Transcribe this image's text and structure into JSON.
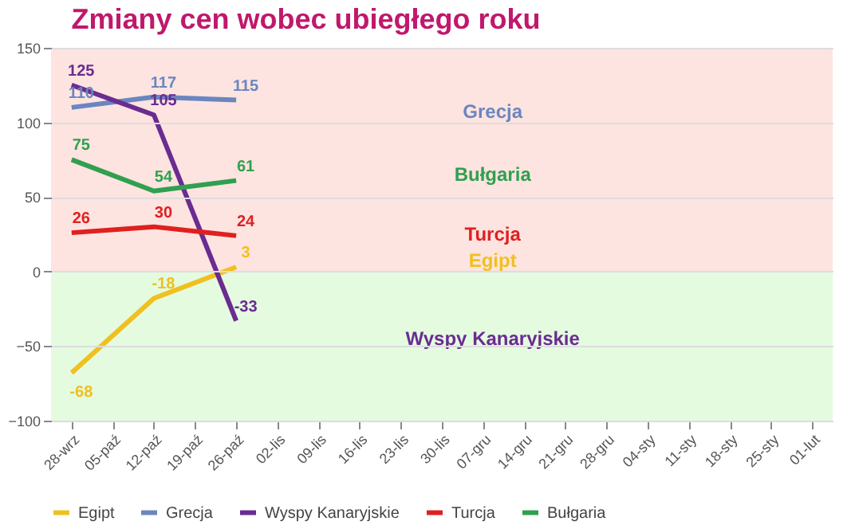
{
  "chart_data": {
    "type": "line",
    "title": "Zmiany cen wobec ubiegłego roku",
    "categories": [
      "28-wrz",
      "05-paź",
      "12-paź",
      "19-paź",
      "26-paź",
      "02-lis",
      "09-lis",
      "16-lis",
      "23-lis",
      "30-lis",
      "07-gru",
      "14-gru",
      "21-gru",
      "28-gru",
      "04-sty",
      "11-sty",
      "18-sty",
      "25-sty",
      "01-lut"
    ],
    "series": [
      {
        "name": "Egipt",
        "color": "#f0c020",
        "values": [
          -68,
          null,
          -18,
          null,
          3,
          null,
          null,
          null,
          null,
          null,
          null,
          null,
          null,
          null,
          null,
          null,
          null,
          null,
          null
        ]
      },
      {
        "name": "Grecja",
        "color": "#6a86c0",
        "values": [
          110,
          null,
          117,
          null,
          115,
          null,
          null,
          null,
          null,
          null,
          null,
          null,
          null,
          null,
          null,
          null,
          null,
          null,
          null
        ]
      },
      {
        "name": "Wyspy Kanaryjskie",
        "color": "#6a2c91",
        "values": [
          125,
          null,
          105,
          null,
          -33,
          null,
          null,
          null,
          null,
          null,
          null,
          null,
          null,
          null,
          null,
          null,
          null,
          null,
          null
        ]
      },
      {
        "name": "Turcja",
        "color": "#e02020",
        "values": [
          26,
          null,
          30,
          null,
          24,
          null,
          null,
          null,
          null,
          null,
          null,
          null,
          null,
          null,
          null,
          null,
          null,
          null,
          null
        ]
      },
      {
        "name": "Bułgaria",
        "color": "#30a050",
        "values": [
          75,
          null,
          54,
          null,
          61,
          null,
          null,
          null,
          null,
          null,
          null,
          null,
          null,
          null,
          null,
          null,
          null,
          null,
          null
        ]
      }
    ],
    "ylim": [
      -100,
      150
    ],
    "yticks": [
      -100,
      -50,
      0,
      50,
      100,
      150
    ],
    "grid": "y",
    "legend": "bottom",
    "data_labels": true,
    "bands": [
      {
        "axis": "y",
        "from": 0,
        "to": 150,
        "color": "#fde4e0"
      },
      {
        "axis": "y",
        "from": -100,
        "to": 0,
        "color": "#e4fbe0"
      }
    ],
    "annotations": [
      "Grecja",
      "Bułgaria",
      "Turcja",
      "Egipt",
      "Wyspy Kanaryjskie"
    ]
  }
}
